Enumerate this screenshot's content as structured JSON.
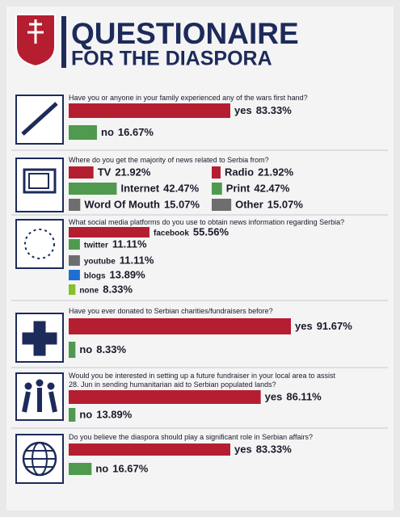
{
  "header": {
    "title": "QUESTIONAIRE",
    "subtitle": "FOR THE DIASPORA"
  },
  "chart_data": [
    {
      "type": "bar",
      "title": "Have you or anyone in your family experienced any of the wars first hand?",
      "categories": [
        "yes",
        "no"
      ],
      "values": [
        83.33,
        16.67
      ],
      "value_labels": [
        "83.33%",
        "16.67%"
      ],
      "colors": [
        "#b51e30",
        "#4f9a4f"
      ]
    },
    {
      "type": "bar",
      "title": "Where do you get the majority of news related to Serbia from?",
      "categories": [
        "TV",
        "Radio",
        "Internet",
        "Print",
        "Word Of Mouth",
        "Other"
      ],
      "values": [
        21.92,
        21.92,
        42.47,
        42.47,
        15.07,
        15.07
      ],
      "value_labels": [
        "21.92%",
        "21.92%",
        "42.47%",
        "42.47%",
        "15.07%",
        "15.07%"
      ],
      "colors": [
        "#b51e30",
        "#b51e30",
        "#4f9a4f",
        "#4f9a4f",
        "#6e6e6e",
        "#6e6e6e"
      ]
    },
    {
      "type": "bar",
      "title": "What social media platforms do you use to obtain news information regarding Serbia?",
      "categories": [
        "facebook",
        "twitter",
        "youtube",
        "blogs",
        "none"
      ],
      "values": [
        55.56,
        11.11,
        11.11,
        13.89,
        8.33
      ],
      "value_labels": [
        "55.56%",
        "11.11%",
        "11.11%",
        "13.89%",
        "8.33%"
      ],
      "colors": [
        "#b51e30",
        "#4f9a4f",
        "#6e6e6e",
        "#1e6fd0",
        "#86c02c"
      ]
    },
    {
      "type": "bar",
      "title": "Have you ever donated to Serbian charities/fundraisers before?",
      "categories": [
        "yes",
        "no"
      ],
      "values": [
        91.67,
        8.33
      ],
      "value_labels": [
        "91.67%",
        "8.33%"
      ],
      "colors": [
        "#b51e30",
        "#4f9a4f"
      ]
    },
    {
      "type": "bar",
      "title": "Would you be interested in setting up a future fundraiser in your local area to assist 28. Jun in sending humanitarian aid to Serbian populated lands?",
      "categories": [
        "yes",
        "no"
      ],
      "values": [
        86.11,
        13.89
      ],
      "value_labels": [
        "86.11%",
        "13.89%"
      ],
      "colors": [
        "#b51e30",
        "#4f9a4f"
      ]
    },
    {
      "type": "bar",
      "title": "Do you believe the diaspora should play a significant role in Serbian affairs?",
      "categories": [
        "yes",
        "no"
      ],
      "values": [
        83.33,
        16.67
      ],
      "value_labels": [
        "83.33%",
        "16.67%"
      ],
      "colors": [
        "#b51e30",
        "#4f9a4f"
      ]
    }
  ]
}
